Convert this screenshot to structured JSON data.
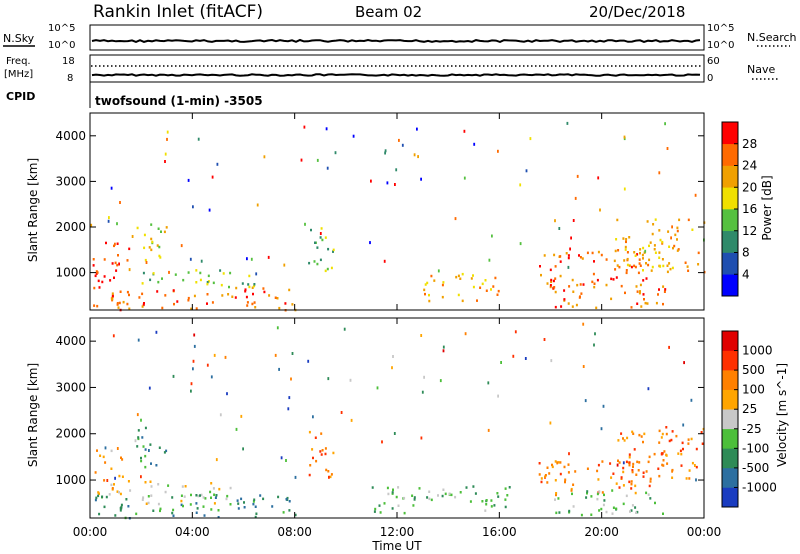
{
  "header": {
    "title": "Rankin Inlet (fitACF)",
    "beam": "Beam 02",
    "date": "20/Dec/2018"
  },
  "aux_panels": {
    "nsky_label": "N.Sky",
    "nsearch_label": "N.Search",
    "nsky_ticks": [
      "10^5",
      "10^0"
    ],
    "nsearch_ticks": [
      "10^5",
      "10^0"
    ],
    "freq_label_line1": "Freq.",
    "freq_label_line2": "[MHz]",
    "freq_ticks": [
      "18",
      "8"
    ],
    "nave_label": "Nave",
    "nave_ticks": [
      "60",
      "0"
    ],
    "cpid_label": "CPID",
    "cpid_text": "twofsound (1-min) -3505"
  },
  "chart_data": [
    {
      "type": "heatmap",
      "name": "power",
      "ylabel": "Slant Range [km]",
      "ylim": [
        180,
        4500
      ],
      "yticks": [
        1000,
        2000,
        3000,
        4000
      ],
      "xlim_hours": [
        0,
        24
      ],
      "xticks": [
        "00:00",
        "04:00",
        "08:00",
        "12:00",
        "16:00",
        "20:00",
        "00:00"
      ],
      "colorbar": {
        "label": "Power [dB]",
        "ticks": [
          "4",
          "8",
          "12",
          "16",
          "20",
          "24",
          "28"
        ],
        "colors": [
          "#0000ff",
          "#1f4fb0",
          "#2f8a6a",
          "#55c040",
          "#f0e000",
          "#f0a000",
          "#ff6a00",
          "#ff0000"
        ]
      },
      "bands": [
        {
          "x": [
            0.1,
            1.5
          ],
          "y": [
            700,
            1700
          ],
          "level": 7
        },
        {
          "x": [
            1.8,
            3.0
          ],
          "y": [
            1300,
            2200
          ],
          "level": 4
        },
        {
          "x": [
            0.1,
            8.0
          ],
          "y": [
            200,
            700
          ],
          "level": 6
        },
        {
          "x": [
            2.0,
            6.5
          ],
          "y": [
            700,
            1100
          ],
          "level": 3
        },
        {
          "x": [
            8.5,
            9.5
          ],
          "y": [
            1000,
            2100
          ],
          "level": 3
        },
        {
          "x": [
            13.0,
            16.0
          ],
          "y": [
            400,
            1000
          ],
          "level": 5
        },
        {
          "x": [
            17.5,
            22.0
          ],
          "y": [
            700,
            1500
          ],
          "level": 6
        },
        {
          "x": [
            18.0,
            22.5
          ],
          "y": [
            250,
            800
          ],
          "level": 6
        },
        {
          "x": [
            20.5,
            24.0
          ],
          "y": [
            1000,
            2200
          ],
          "level": 5
        }
      ]
    },
    {
      "type": "heatmap",
      "name": "velocity",
      "ylabel": "Slant Range [km]",
      "ylim": [
        180,
        4500
      ],
      "yticks": [
        1000,
        2000,
        3000,
        4000
      ],
      "xlim_hours": [
        0,
        24
      ],
      "xticks": [
        "00:00",
        "04:00",
        "08:00",
        "12:00",
        "16:00",
        "20:00",
        "00:00"
      ],
      "xlabel": "Time UT",
      "colorbar": {
        "label": "Velocity [m s^-1]",
        "ticks": [
          "1000",
          "500",
          "100",
          "25",
          "-25",
          "-100",
          "-500",
          "-1000"
        ],
        "colors": [
          "#1a3cc0",
          "#2c6fa0",
          "#2e8b57",
          "#4cbf3a",
          "#c8c8c8",
          "#ffa500",
          "#ff8000",
          "#ff3000",
          "#e00000"
        ]
      },
      "bands": [
        {
          "x": [
            0.1,
            1.5
          ],
          "y": [
            700,
            1700
          ],
          "level": 5
        },
        {
          "x": [
            1.8,
            3.0
          ],
          "y": [
            1300,
            2200
          ],
          "level": 2
        },
        {
          "x": [
            1.5,
            5.5
          ],
          "y": [
            500,
            1000
          ],
          "level": 4
        },
        {
          "x": [
            0.1,
            8.0
          ],
          "y": [
            200,
            700
          ],
          "level": 2
        },
        {
          "x": [
            8.5,
            9.5
          ],
          "y": [
            1000,
            2100
          ],
          "level": 6
        },
        {
          "x": [
            11.0,
            16.5
          ],
          "y": [
            300,
            900
          ],
          "level": 3
        },
        {
          "x": [
            17.5,
            22.0
          ],
          "y": [
            700,
            1500
          ],
          "level": 6
        },
        {
          "x": [
            18.0,
            22.5
          ],
          "y": [
            250,
            800
          ],
          "level": 3
        },
        {
          "x": [
            20.5,
            24.0
          ],
          "y": [
            1000,
            2200
          ],
          "level": 6
        }
      ]
    }
  ]
}
